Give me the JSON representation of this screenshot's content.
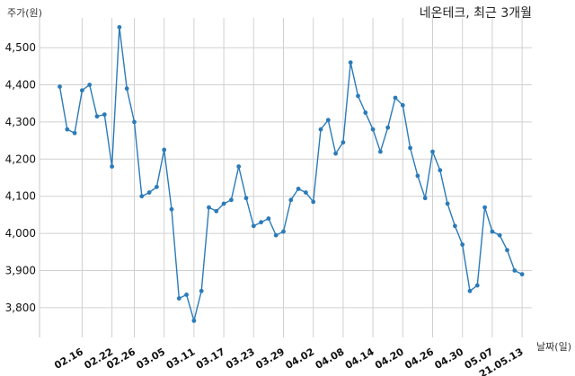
{
  "chart_data": {
    "type": "line",
    "title": "네온테크, 최근 3개월",
    "ylabel": "주가(원)",
    "xlabel": "날짜(일)",
    "ylim": [
      3720,
      4580
    ],
    "yticks": [
      3800,
      3900,
      4000,
      4100,
      4200,
      4300,
      4400,
      4500
    ],
    "ytick_labels": [
      "3,800",
      "3,900",
      "4,000",
      "4,100",
      "4,200",
      "4,300",
      "4,400",
      "4,500"
    ],
    "xtick_labels": [
      "02.16",
      "02.22",
      "02.26",
      "03.05",
      "03.11",
      "03.17",
      "03.23",
      "03.29",
      "04.02",
      "04.08",
      "04.14",
      "04.20",
      "04.26",
      "04.30",
      "05.07",
      "21.05.13"
    ],
    "xtick_index": [
      3,
      7,
      10,
      14,
      18,
      22,
      26,
      30,
      34,
      38,
      42,
      46,
      50,
      54,
      58,
      62
    ],
    "grid": true,
    "color": "#2b7bb9",
    "series": [
      {
        "values": [
          4395,
          4280,
          4270,
          4385,
          4400,
          4315,
          4320,
          4180,
          4555,
          4390,
          4300,
          4100,
          4110,
          4125,
          4225,
          4065,
          3825,
          3835,
          3765,
          3845,
          4070,
          4060,
          4080,
          4090,
          4180,
          4095,
          4020,
          4030,
          4040,
          3995,
          4005,
          4090,
          4120,
          4110,
          4085,
          4280,
          4305,
          4215,
          4245,
          4460,
          4370,
          4325,
          4280,
          4220,
          4285,
          4365,
          4345,
          4230,
          4155,
          4095,
          4220,
          4170,
          4080,
          4020,
          3970,
          3845,
          3860,
          4070,
          4005,
          3995,
          3955,
          3900,
          3890
        ]
      }
    ]
  }
}
